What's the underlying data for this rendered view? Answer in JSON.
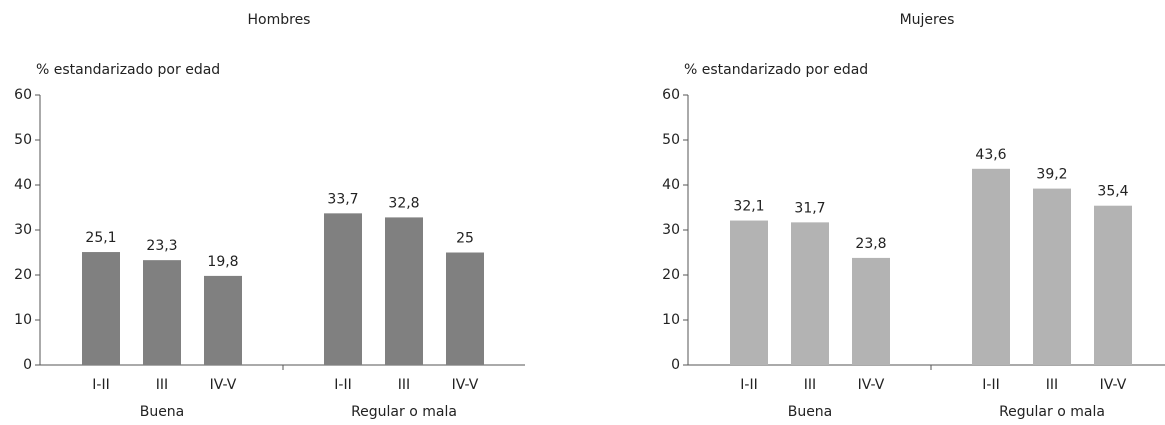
{
  "chart_data": [
    {
      "type": "bar",
      "title": "Hombres",
      "y_label": "% estandarizado por edad",
      "categories": [
        "I-II",
        "III",
        "IV-V",
        "I-II",
        "III",
        "IV-V"
      ],
      "groups": [
        "Buena",
        "Regular o mala"
      ],
      "values": [
        25.1,
        23.3,
        19.8,
        33.7,
        32.8,
        25
      ],
      "value_labels": [
        "25,1",
        "23,3",
        "19,8",
        "33,7",
        "32,8",
        "25"
      ],
      "color": "#808080",
      "ylim": [
        0,
        60
      ],
      "yticks": [
        0,
        10,
        20,
        30,
        40,
        50,
        60
      ]
    },
    {
      "type": "bar",
      "title": "Mujeres",
      "y_label": "% estandarizado por edad",
      "categories": [
        "I-II",
        "III",
        "IV-V",
        "I-II",
        "III",
        "IV-V"
      ],
      "groups": [
        "Buena",
        "Regular o mala"
      ],
      "values": [
        32.1,
        31.7,
        23.8,
        43.6,
        39.2,
        35.4
      ],
      "value_labels": [
        "32,1",
        "31,7",
        "23,8",
        "43,6",
        "39,2",
        "35,4"
      ],
      "color": "#b3b3b3",
      "ylim": [
        0,
        60
      ],
      "yticks": [
        0,
        10,
        20,
        30,
        40,
        50,
        60
      ]
    }
  ]
}
